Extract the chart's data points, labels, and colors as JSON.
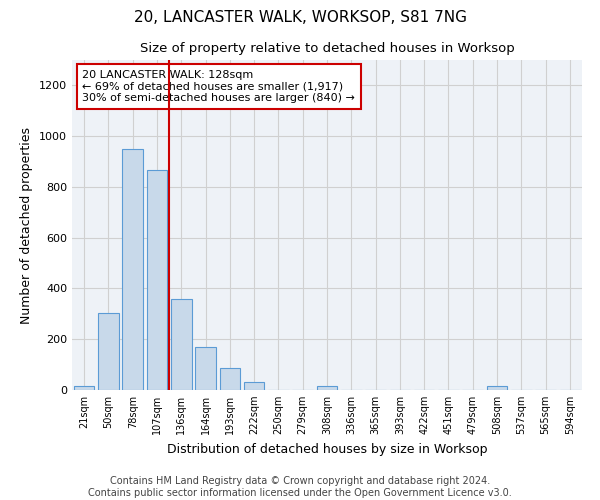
{
  "title": "20, LANCASTER WALK, WORKSOP, S81 7NG",
  "subtitle": "Size of property relative to detached houses in Worksop",
  "xlabel": "Distribution of detached houses by size in Worksop",
  "ylabel": "Number of detached properties",
  "categories": [
    "21sqm",
    "50sqm",
    "78sqm",
    "107sqm",
    "136sqm",
    "164sqm",
    "193sqm",
    "222sqm",
    "250sqm",
    "279sqm",
    "308sqm",
    "336sqm",
    "365sqm",
    "393sqm",
    "422sqm",
    "451sqm",
    "479sqm",
    "508sqm",
    "537sqm",
    "565sqm",
    "594sqm"
  ],
  "values": [
    15,
    305,
    950,
    865,
    360,
    170,
    85,
    30,
    0,
    0,
    15,
    0,
    0,
    0,
    0,
    0,
    0,
    15,
    0,
    0,
    0
  ],
  "bar_color": "#c8d9ea",
  "bar_edge_color": "#5b9bd5",
  "grid_color": "#d0d0d0",
  "bg_color": "#eef2f7",
  "annotation_text": "20 LANCASTER WALK: 128sqm\n← 69% of detached houses are smaller (1,917)\n30% of semi-detached houses are larger (840) →",
  "annotation_box_color": "#ffffff",
  "annotation_border_color": "#cc0000",
  "vline_x_index": 3.5,
  "vline_color": "#cc0000",
  "ylim": [
    0,
    1300
  ],
  "yticks": [
    0,
    200,
    400,
    600,
    800,
    1000,
    1200
  ],
  "footer": "Contains HM Land Registry data © Crown copyright and database right 2024.\nContains public sector information licensed under the Open Government Licence v3.0.",
  "title_fontsize": 11,
  "subtitle_fontsize": 9.5,
  "xlabel_fontsize": 9,
  "ylabel_fontsize": 9,
  "footer_fontsize": 7,
  "annotation_fontsize": 8
}
